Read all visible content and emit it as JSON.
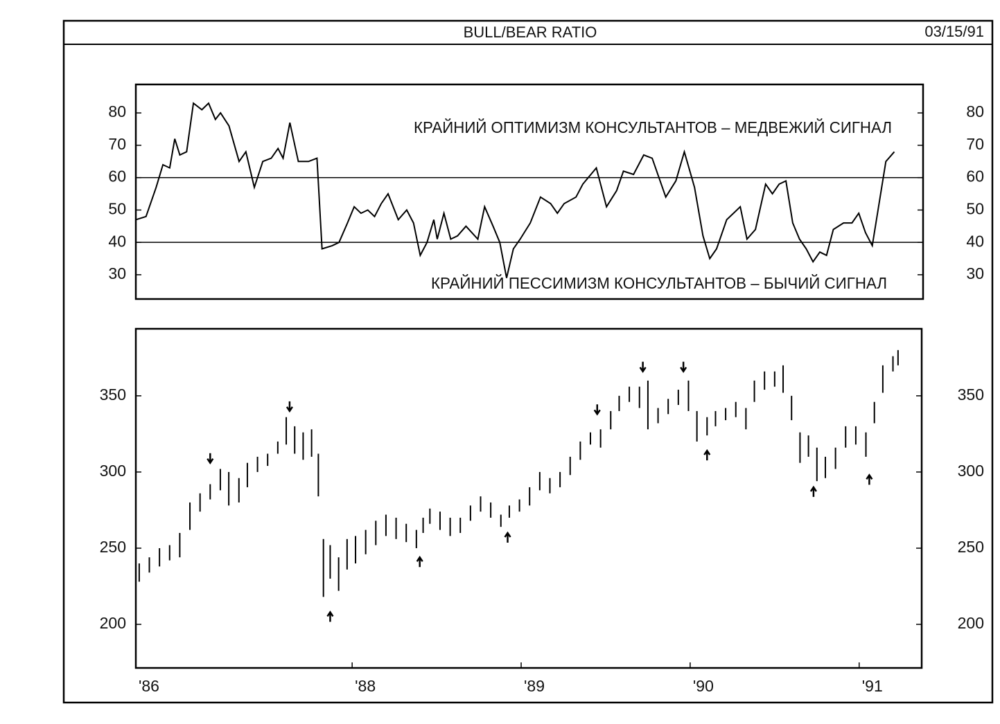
{
  "header": {
    "title": "BULL/BEAR RATIO",
    "date": "03/15/91"
  },
  "chart_data": [
    {
      "type": "line",
      "color": "#000000",
      "annotations": [
        "КРАЙНИЙ ОПТИМИЗМ КОНСУЛЬТАНТОВ – МЕДВЕЖИЙ СИГНАЛ",
        "КРАЙНИЙ ПЕССИМИЗМ КОНСУЛЬТАНТОВ – БЫЧИЙ СИГНАЛ"
      ],
      "reference_lines": [
        60,
        40
      ],
      "xlim": [
        1986.72,
        1991.37
      ],
      "ylim": [
        22.5,
        88.8
      ],
      "yticks": [
        30,
        40,
        50,
        60,
        70,
        80
      ],
      "x": [
        1986.72,
        1986.78,
        1986.84,
        1986.88,
        1986.92,
        1986.95,
        1986.98,
        1987.02,
        1987.06,
        1987.11,
        1987.15,
        1987.19,
        1987.22,
        1987.27,
        1987.33,
        1987.37,
        1987.42,
        1987.47,
        1987.52,
        1987.56,
        1987.59,
        1987.63,
        1987.68,
        1987.74,
        1987.79,
        1987.82,
        1987.88,
        1987.92,
        1987.97,
        1988.01,
        1988.05,
        1988.09,
        1988.13,
        1988.17,
        1988.21,
        1988.27,
        1988.32,
        1988.36,
        1988.4,
        1988.44,
        1988.48,
        1988.5,
        1988.54,
        1988.58,
        1988.62,
        1988.67,
        1988.74,
        1988.78,
        1988.83,
        1988.87,
        1988.91,
        1988.95,
        1988.99,
        1989.05,
        1989.11,
        1989.17,
        1989.21,
        1989.25,
        1989.32,
        1989.36,
        1989.44,
        1989.5,
        1989.56,
        1989.6,
        1989.66,
        1989.72,
        1989.77,
        1989.81,
        1989.85,
        1989.91,
        1989.96,
        1990.02,
        1990.07,
        1990.11,
        1990.15,
        1990.21,
        1990.25,
        1990.29,
        1990.33,
        1990.38,
        1990.44,
        1990.48,
        1990.52,
        1990.56,
        1990.6,
        1990.64,
        1990.68,
        1990.72,
        1990.76,
        1990.8,
        1990.84,
        1990.9,
        1990.95,
        1990.99,
        1991.03,
        1991.07,
        1991.11,
        1991.15,
        1991.2
      ],
      "values": [
        47,
        48,
        57,
        64,
        63,
        72,
        67,
        68,
        83,
        81,
        83,
        78,
        80,
        76,
        65,
        68,
        57,
        65,
        66,
        69,
        66,
        77,
        65,
        65,
        66,
        38,
        39,
        40,
        46,
        51,
        49,
        50,
        48,
        52,
        55,
        47,
        50,
        46,
        36,
        40,
        47,
        41,
        49,
        41,
        42,
        45,
        41,
        51,
        45,
        40,
        29,
        38,
        41,
        46,
        54,
        52,
        49,
        52,
        54,
        58,
        63,
        51,
        56,
        62,
        61,
        67,
        66,
        60,
        54,
        59,
        68,
        57,
        42,
        35,
        38,
        47,
        49,
        51,
        41,
        44,
        58,
        55,
        58,
        59,
        46,
        41,
        38,
        34,
        37,
        36,
        44,
        46,
        46,
        49,
        43,
        39,
        52,
        65,
        68
      ]
    },
    {
      "type": "hilo",
      "color": "#000000",
      "xlim": [
        1986.72,
        1991.37
      ],
      "ylim": [
        171.4,
        394
      ],
      "yticks": [
        200,
        250,
        300,
        350
      ],
      "xticks": [
        {
          "value": 1986.72,
          "label": "'86"
        },
        {
          "value": 1988,
          "label": "'88"
        },
        {
          "value": 1989,
          "label": "'89"
        },
        {
          "value": 1990,
          "label": "'90"
        },
        {
          "value": 1991,
          "label": "'91"
        }
      ],
      "x": [
        1986.74,
        1986.8,
        1986.86,
        1986.92,
        1986.98,
        1987.04,
        1987.1,
        1987.16,
        1987.22,
        1987.27,
        1987.33,
        1987.38,
        1987.44,
        1987.5,
        1987.56,
        1987.61,
        1987.66,
        1987.71,
        1987.76,
        1987.8,
        1987.83,
        1987.87,
        1987.92,
        1987.97,
        1988.02,
        1988.08,
        1988.14,
        1988.2,
        1988.26,
        1988.32,
        1988.38,
        1988.42,
        1988.46,
        1988.52,
        1988.58,
        1988.64,
        1988.7,
        1988.76,
        1988.82,
        1988.88,
        1988.93,
        1988.99,
        1989.05,
        1989.11,
        1989.17,
        1989.23,
        1989.29,
        1989.35,
        1989.41,
        1989.47,
        1989.53,
        1989.58,
        1989.64,
        1989.7,
        1989.75,
        1989.81,
        1989.87,
        1989.93,
        1989.99,
        1990.04,
        1990.1,
        1990.15,
        1990.21,
        1990.27,
        1990.33,
        1990.38,
        1990.44,
        1990.5,
        1990.55,
        1990.6,
        1990.65,
        1990.7,
        1990.75,
        1990.8,
        1990.86,
        1990.92,
        1990.98,
        1991.04,
        1991.09,
        1991.14,
        1991.2,
        1991.23
      ],
      "low": [
        228,
        234,
        238,
        242,
        244,
        262,
        274,
        282,
        288,
        278,
        280,
        290,
        300,
        304,
        312,
        318,
        312,
        308,
        310,
        284,
        218,
        230,
        222,
        236,
        240,
        246,
        252,
        258,
        256,
        254,
        250,
        260,
        266,
        262,
        258,
        260,
        268,
        274,
        270,
        264,
        270,
        274,
        278,
        288,
        286,
        290,
        298,
        308,
        318,
        316,
        328,
        340,
        346,
        342,
        328,
        332,
        338,
        344,
        340,
        320,
        324,
        330,
        334,
        336,
        328,
        346,
        354,
        356,
        352,
        334,
        306,
        310,
        294,
        296,
        302,
        316,
        318,
        310,
        332,
        352,
        366,
        370
      ],
      "high": [
        240,
        244,
        250,
        252,
        260,
        280,
        286,
        292,
        302,
        300,
        296,
        306,
        310,
        312,
        320,
        336,
        330,
        326,
        328,
        312,
        256,
        252,
        244,
        256,
        258,
        262,
        268,
        272,
        270,
        266,
        262,
        270,
        276,
        274,
        270,
        270,
        278,
        284,
        280,
        272,
        278,
        282,
        290,
        300,
        296,
        300,
        310,
        320,
        326,
        328,
        340,
        350,
        356,
        356,
        360,
        342,
        348,
        354,
        360,
        340,
        336,
        340,
        342,
        346,
        342,
        360,
        366,
        366,
        370,
        350,
        326,
        324,
        316,
        310,
        316,
        330,
        330,
        326,
        346,
        370,
        376,
        380
      ],
      "arrows": [
        {
          "x": 1987.16,
          "y": 306,
          "direction": "down"
        },
        {
          "x": 1987.63,
          "y": 340,
          "direction": "down"
        },
        {
          "x": 1989.45,
          "y": 338,
          "direction": "down"
        },
        {
          "x": 1989.72,
          "y": 366,
          "direction": "down"
        },
        {
          "x": 1989.96,
          "y": 366,
          "direction": "down"
        },
        {
          "x": 1987.87,
          "y": 208,
          "direction": "up"
        },
        {
          "x": 1988.4,
          "y": 244,
          "direction": "up"
        },
        {
          "x": 1988.92,
          "y": 260,
          "direction": "up"
        },
        {
          "x": 1990.1,
          "y": 314,
          "direction": "up"
        },
        {
          "x": 1990.73,
          "y": 290,
          "direction": "up"
        },
        {
          "x": 1991.06,
          "y": 298,
          "direction": "up"
        }
      ]
    }
  ]
}
